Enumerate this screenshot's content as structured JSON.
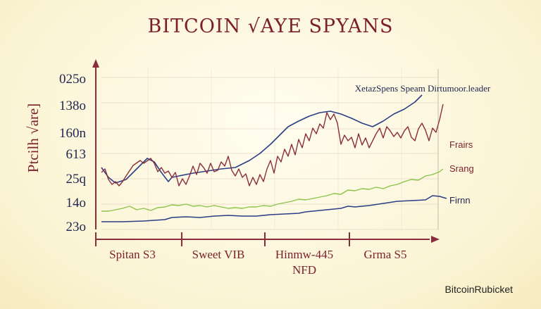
{
  "chart_data": {
    "type": "line",
    "title": "BITCOIN √AYE SPYANS",
    "ylabel": "Ptcilh √are]",
    "y_tick_labels": [
      "025o",
      "138o",
      "160n",
      "613",
      "25q",
      "14o",
      "23o"
    ],
    "x_segments": [
      "Spitan S3",
      "Sweet VIB",
      "Hinmw-445\nNFD",
      "Grma S5"
    ],
    "top_annotation": "XetazSpens  Speam Dirtumoor.leader",
    "grid": true,
    "legend_position": "right",
    "series": [
      {
        "name": "",
        "color": "#2b3e86",
        "values": [
          [
            0,
            238
          ],
          [
            10,
            252
          ],
          [
            20,
            260
          ],
          [
            35,
            255
          ],
          [
            50,
            240
          ],
          [
            65,
            225
          ],
          [
            75,
            230
          ],
          [
            85,
            245
          ],
          [
            95,
            258
          ],
          [
            100,
            252
          ],
          [
            110,
            250
          ],
          [
            130,
            246
          ],
          [
            150,
            243
          ],
          [
            170,
            240
          ],
          [
            190,
            238
          ],
          [
            210,
            228
          ],
          [
            225,
            218
          ],
          [
            240,
            205
          ],
          [
            255,
            190
          ],
          [
            265,
            180
          ],
          [
            280,
            172
          ],
          [
            295,
            165
          ],
          [
            310,
            160
          ],
          [
            325,
            158
          ],
          [
            340,
            162
          ],
          [
            355,
            168
          ],
          [
            370,
            175
          ],
          [
            385,
            180
          ],
          [
            400,
            172
          ],
          [
            415,
            162
          ],
          [
            430,
            155
          ],
          [
            445,
            145
          ],
          [
            455,
            135
          ]
        ]
      },
      {
        "name": "Frairs",
        "color": "#8b2e3c",
        "values": [
          [
            0,
            245
          ],
          [
            5,
            240
          ],
          [
            10,
            255
          ],
          [
            15,
            262
          ],
          [
            20,
            258
          ],
          [
            25,
            264
          ],
          [
            30,
            258
          ],
          [
            35,
            250
          ],
          [
            45,
            235
          ],
          [
            55,
            228
          ],
          [
            60,
            232
          ],
          [
            70,
            225
          ],
          [
            75,
            232
          ],
          [
            80,
            244
          ],
          [
            85,
            238
          ],
          [
            90,
            246
          ],
          [
            95,
            243
          ],
          [
            100,
            252
          ],
          [
            105,
            245
          ],
          [
            110,
            264
          ],
          [
            115,
            254
          ],
          [
            120,
            262
          ],
          [
            125,
            250
          ],
          [
            130,
            236
          ],
          [
            135,
            248
          ],
          [
            140,
            232
          ],
          [
            145,
            238
          ],
          [
            150,
            246
          ],
          [
            155,
            232
          ],
          [
            160,
            244
          ],
          [
            165,
            242
          ],
          [
            170,
            230
          ],
          [
            175,
            236
          ],
          [
            180,
            222
          ],
          [
            185,
            242
          ],
          [
            190,
            250
          ],
          [
            195,
            240
          ],
          [
            200,
            252
          ],
          [
            205,
            247
          ],
          [
            210,
            264
          ],
          [
            215,
            252
          ],
          [
            220,
            262
          ],
          [
            225,
            248
          ],
          [
            230,
            258
          ],
          [
            235,
            240
          ],
          [
            240,
            228
          ],
          [
            245,
            246
          ],
          [
            250,
            222
          ],
          [
            255,
            230
          ],
          [
            260,
            212
          ],
          [
            265,
            222
          ],
          [
            270,
            205
          ],
          [
            275,
            220
          ],
          [
            280,
            198
          ],
          [
            285,
            210
          ],
          [
            290,
            190
          ],
          [
            295,
            200
          ],
          [
            300,
            182
          ],
          [
            305,
            190
          ],
          [
            310,
            176
          ],
          [
            315,
            182
          ],
          [
            320,
            160
          ],
          [
            325,
            170
          ],
          [
            330,
            162
          ],
          [
            335,
            175
          ],
          [
            340,
            205
          ],
          [
            345,
            192
          ],
          [
            350,
            200
          ],
          [
            355,
            195
          ],
          [
            360,
            210
          ],
          [
            365,
            190
          ],
          [
            370,
            206
          ],
          [
            375,
            196
          ],
          [
            380,
            210
          ],
          [
            385,
            200
          ],
          [
            390,
            190
          ],
          [
            395,
            182
          ],
          [
            400,
            196
          ],
          [
            405,
            180
          ],
          [
            410,
            186
          ],
          [
            415,
            194
          ],
          [
            420,
            188
          ],
          [
            425,
            196
          ],
          [
            430,
            186
          ],
          [
            435,
            180
          ],
          [
            440,
            195
          ],
          [
            445,
            200
          ],
          [
            450,
            183
          ],
          [
            455,
            175
          ],
          [
            460,
            185
          ],
          [
            465,
            200
          ],
          [
            470,
            182
          ],
          [
            475,
            188
          ],
          [
            480,
            170
          ],
          [
            485,
            148
          ]
        ]
      },
      {
        "name": "Srang",
        "color": "#8cc34a",
        "values": [
          [
            0,
            300
          ],
          [
            10,
            300
          ],
          [
            20,
            298
          ],
          [
            30,
            296
          ],
          [
            40,
            293
          ],
          [
            50,
            298
          ],
          [
            60,
            296
          ],
          [
            70,
            299
          ],
          [
            80,
            295
          ],
          [
            90,
            294
          ],
          [
            100,
            291
          ],
          [
            110,
            292
          ],
          [
            120,
            290
          ],
          [
            130,
            293
          ],
          [
            140,
            292
          ],
          [
            150,
            294
          ],
          [
            160,
            292
          ],
          [
            170,
            294
          ],
          [
            180,
            296
          ],
          [
            190,
            295
          ],
          [
            200,
            296
          ],
          [
            210,
            294
          ],
          [
            220,
            294
          ],
          [
            230,
            292
          ],
          [
            240,
            293
          ],
          [
            250,
            290
          ],
          [
            260,
            288
          ],
          [
            270,
            286
          ],
          [
            280,
            283
          ],
          [
            290,
            284
          ],
          [
            300,
            282
          ],
          [
            310,
            280
          ],
          [
            320,
            278
          ],
          [
            330,
            275
          ],
          [
            340,
            276
          ],
          [
            350,
            270
          ],
          [
            360,
            271
          ],
          [
            370,
            268
          ],
          [
            380,
            269
          ],
          [
            390,
            266
          ],
          [
            400,
            268
          ],
          [
            410,
            264
          ],
          [
            420,
            262
          ],
          [
            430,
            258
          ],
          [
            440,
            255
          ],
          [
            450,
            256
          ],
          [
            460,
            250
          ],
          [
            470,
            248
          ],
          [
            480,
            244
          ],
          [
            485,
            240
          ]
        ]
      },
      {
        "name": "Firnn",
        "color": "#2b3e86",
        "values": [
          [
            0,
            315
          ],
          [
            30,
            315
          ],
          [
            60,
            314
          ],
          [
            90,
            312
          ],
          [
            100,
            309
          ],
          [
            120,
            308
          ],
          [
            140,
            309
          ],
          [
            160,
            307
          ],
          [
            180,
            306
          ],
          [
            200,
            307
          ],
          [
            220,
            307
          ],
          [
            240,
            305
          ],
          [
            260,
            304
          ],
          [
            280,
            303
          ],
          [
            290,
            301
          ],
          [
            300,
            300
          ],
          [
            320,
            298
          ],
          [
            340,
            296
          ],
          [
            350,
            293
          ],
          [
            360,
            294
          ],
          [
            380,
            292
          ],
          [
            400,
            289
          ],
          [
            420,
            286
          ],
          [
            440,
            285
          ],
          [
            460,
            284
          ],
          [
            470,
            278
          ],
          [
            480,
            279
          ],
          [
            490,
            282
          ]
        ]
      }
    ]
  },
  "watermark": "BitcoinRubicket"
}
